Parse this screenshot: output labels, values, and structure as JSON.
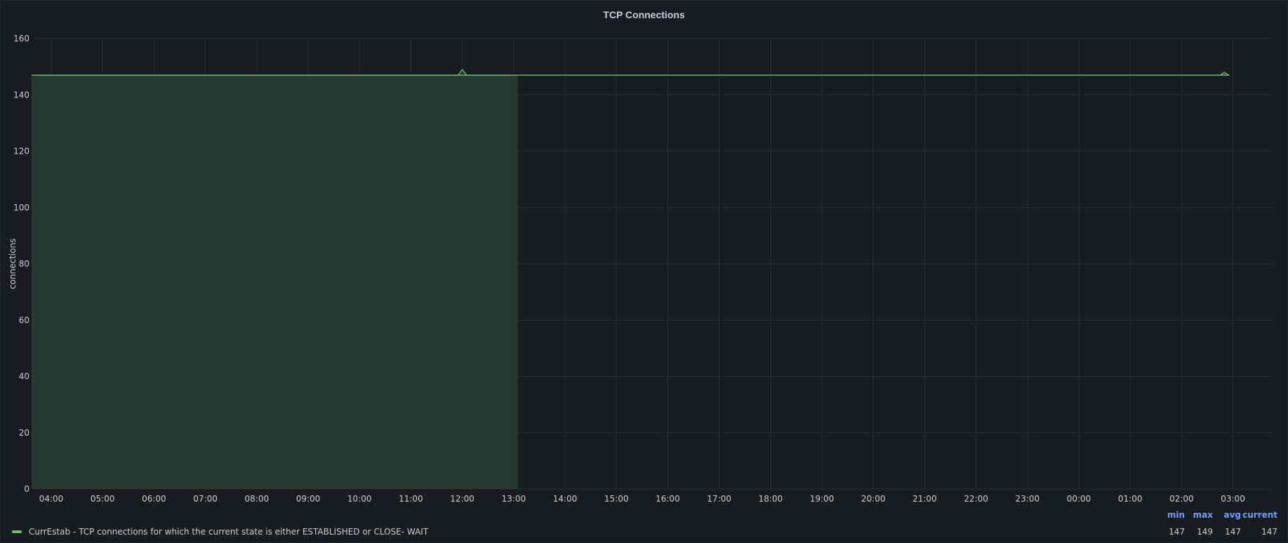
{
  "panel": {
    "title": "TCP Connections"
  },
  "colors": {
    "background": "#181b1f",
    "series": "#73bf69",
    "fill": "#263b31",
    "grid": "#3a3d43",
    "legend_header": "#6e9fff"
  },
  "chart_data": {
    "type": "area",
    "title": "TCP Connections",
    "xlabel": "",
    "ylabel": "connections",
    "ylim": [
      0,
      160
    ],
    "yticks": [
      0,
      20,
      40,
      60,
      80,
      100,
      120,
      140,
      160
    ],
    "xticks": [
      "04:00",
      "05:00",
      "06:00",
      "07:00",
      "08:00",
      "09:00",
      "10:00",
      "11:00",
      "12:00",
      "13:00",
      "14:00",
      "15:00",
      "16:00",
      "17:00",
      "18:00",
      "19:00",
      "20:00",
      "21:00",
      "22:00",
      "23:00",
      "00:00",
      "01:00",
      "02:00",
      "03:00"
    ],
    "grid": true,
    "series": [
      {
        "name": "CurrEstab - TCP connections for which the current state is either ESTABLISHED or CLOSE- WAIT",
        "segments": [
          [
            [
              "03:48",
              147
            ],
            [
              "11:55",
              147
            ],
            [
              "12:00",
              149
            ],
            [
              "12:05",
              147
            ],
            [
              "12:55",
              147
            ]
          ],
          [
            [
              "13:05",
              147
            ],
            [
              "02:45",
              147
            ],
            [
              "02:50",
              148
            ],
            [
              "02:55",
              147
            ],
            [
              "03:37",
              147
            ]
          ]
        ]
      }
    ]
  },
  "legend": {
    "headers": {
      "min": "min",
      "max": "max",
      "avg": "avg",
      "current": "current"
    },
    "items": [
      {
        "label": "CurrEstab - TCP connections for which the current state is either ESTABLISHED or CLOSE- WAIT",
        "min": "147",
        "max": "149",
        "avg": "147",
        "current": "147"
      }
    ]
  }
}
